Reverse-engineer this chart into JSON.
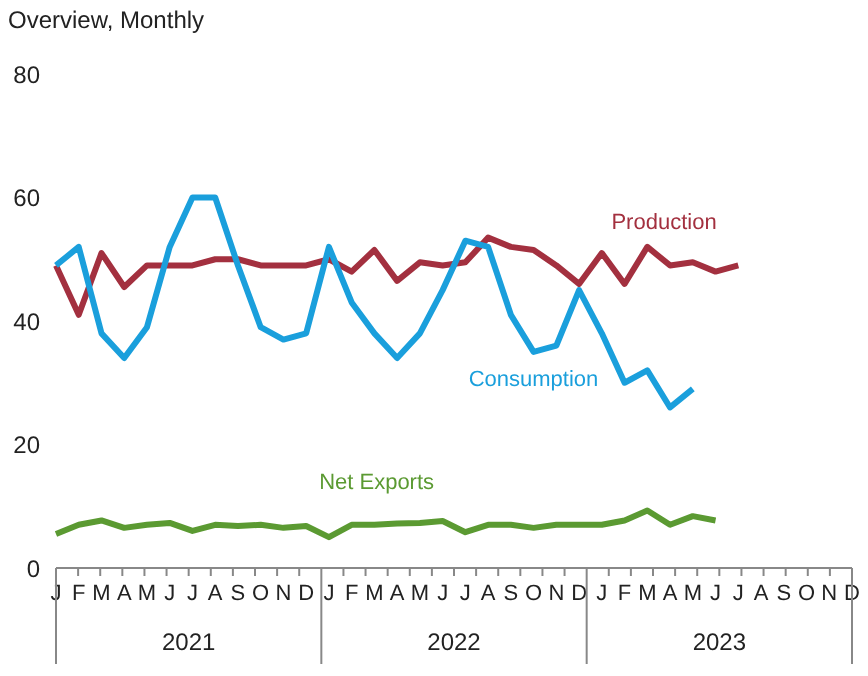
{
  "chart_data": {
    "type": "line",
    "title": "Overview, Monthly",
    "categories": [
      "J",
      "F",
      "M",
      "A",
      "M",
      "J",
      "J",
      "A",
      "S",
      "O",
      "N",
      "D",
      "J",
      "F",
      "M",
      "A",
      "M",
      "J",
      "J",
      "A",
      "S",
      "O",
      "N",
      "D",
      "J",
      "F",
      "M",
      "A",
      "M",
      "J",
      "J",
      "A",
      "S",
      "O",
      "N",
      "D"
    ],
    "annotations": [
      "2021",
      "2022",
      "2023"
    ],
    "series": [
      {
        "name": "Production",
        "color": "#a3303f",
        "values": [
          49,
          41,
          51,
          45.5,
          49,
          49,
          49,
          50,
          50,
          49,
          49,
          49,
          50,
          48,
          51.5,
          46.5,
          49.5,
          49,
          49.5,
          53.5,
          52,
          51.5,
          49,
          46,
          51,
          46,
          52,
          49,
          49.5,
          48,
          49,
          null,
          null,
          null,
          null,
          null
        ]
      },
      {
        "name": "Consumption",
        "color": "#1a9fdc",
        "values": [
          49,
          52,
          38,
          34,
          39,
          52,
          60,
          60,
          49,
          39,
          37,
          38,
          52,
          43,
          38,
          34,
          38,
          45,
          53,
          52,
          41,
          35,
          36,
          45,
          38,
          30,
          32,
          26,
          29,
          null,
          null,
          null,
          null,
          null,
          null,
          null
        ]
      },
      {
        "name": "Net Exports",
        "color": "#5b9a32",
        "values": [
          5.5,
          7,
          7.7,
          6.5,
          7,
          7.3,
          6,
          7,
          6.8,
          7,
          6.5,
          6.8,
          5,
          7,
          7,
          7.2,
          7.3,
          7.6,
          5.8,
          7,
          7,
          6.5,
          7,
          7,
          7,
          7.7,
          9.3,
          7,
          8.4,
          7.7,
          null,
          null,
          null,
          null,
          null,
          null
        ]
      }
    ],
    "ylim": [
      0,
      80
    ],
    "yticks": [
      0,
      20,
      40,
      60,
      80
    ],
    "grid": false,
    "legend": false,
    "marker": "none",
    "line_style": "solid"
  }
}
